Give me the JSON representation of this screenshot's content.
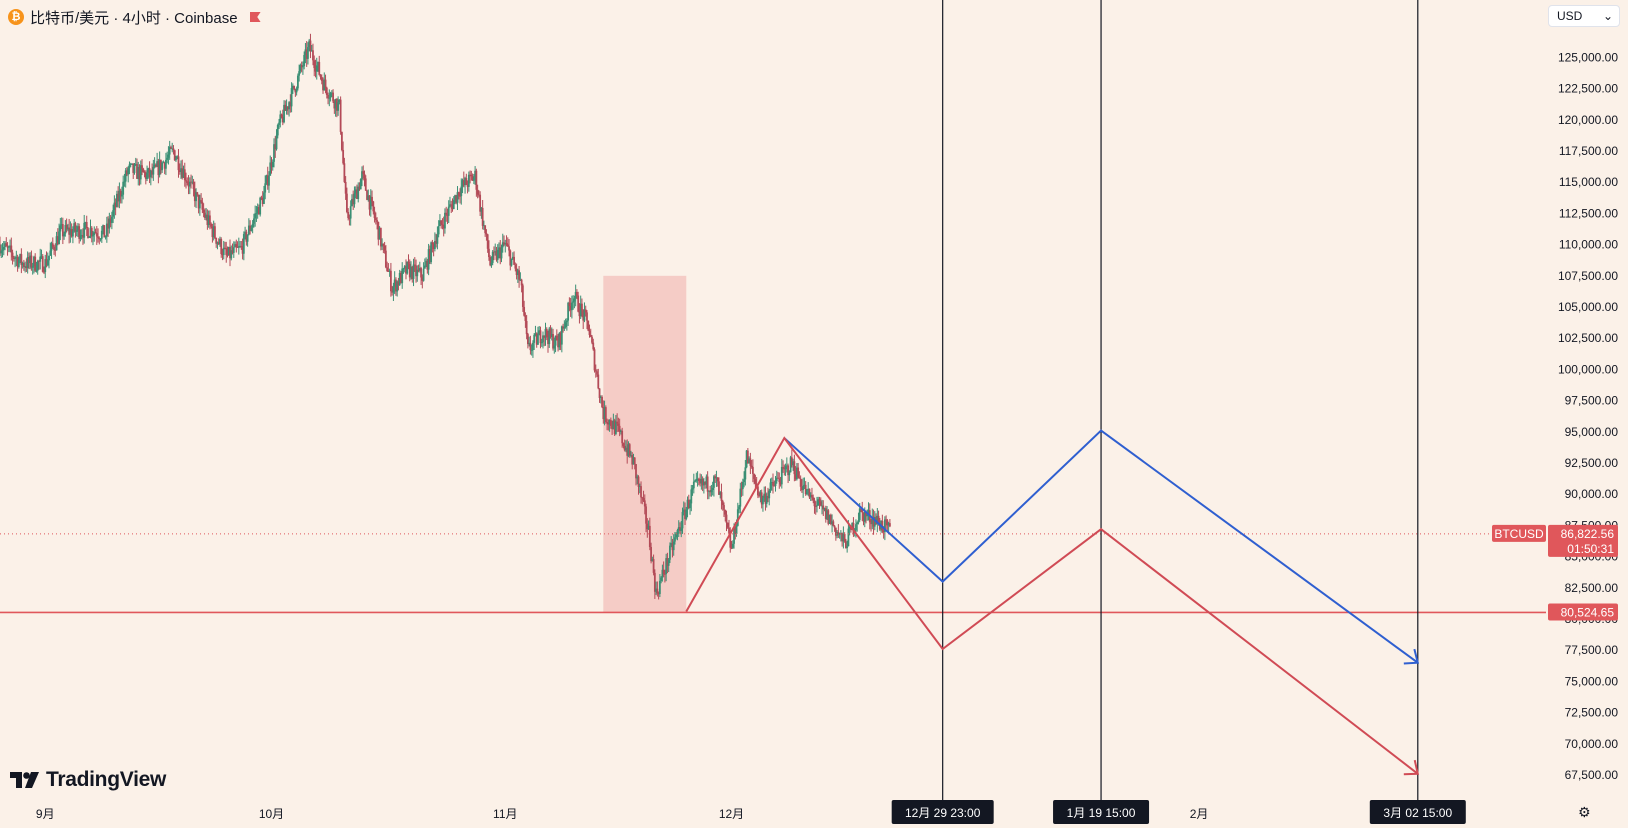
{
  "header": {
    "coin_symbol": "₿",
    "title": "比特币/美元 · 4小时 · Coinbase"
  },
  "currency_select": {
    "value": "USD",
    "chevron": "⌄"
  },
  "logo": {
    "text": "TradingView"
  },
  "settings": {
    "icon": "⚙"
  },
  "chart_data": {
    "type": "candlestick",
    "symbol": "BTCUSD",
    "interval": "4小时",
    "exchange": "Coinbase",
    "y_axis": {
      "ticks": [
        67500,
        70000,
        72500,
        75000,
        77500,
        80000,
        82500,
        85000,
        87500,
        90000,
        92500,
        95000,
        97500,
        100000,
        102500,
        105000,
        107500,
        110000,
        112500,
        115000,
        117500,
        120000,
        122500,
        125000
      ],
      "tick_labels": [
        "67,500.00",
        "70,000.00",
        "72,500.00",
        "75,000.00",
        "77,500.00",
        "80,000.00",
        "82,500.00",
        "85,000.00",
        "87,500.00",
        "90,000.00",
        "92,500.00",
        "95,000.00",
        "97,500.00",
        "100,000.00",
        "102,500.00",
        "105,000.00",
        "107,500.00",
        "110,000.00",
        "112,500.00",
        "115,000.00",
        "117,500.00",
        "120,000.00",
        "122,500.00",
        "125,000.00"
      ],
      "range": [
        65500,
        129600
      ]
    },
    "x_axis": {
      "range": [
        "2025-08-26",
        "2026-03-19"
      ],
      "month_labels": [
        {
          "date": "2025-09-01",
          "label": "9月"
        },
        {
          "date": "2025-10-01",
          "label": "10月"
        },
        {
          "date": "2025-11-01",
          "label": "11月"
        },
        {
          "date": "2025-12-01",
          "label": "12月"
        },
        {
          "date": "2026-02-01",
          "label": "2月"
        }
      ]
    },
    "price_path": [
      [
        "2025-08-26",
        110000
      ],
      [
        "2025-08-29",
        108500
      ],
      [
        "2025-09-01",
        108500
      ],
      [
        "2025-09-03",
        111000
      ],
      [
        "2025-09-07",
        111200
      ],
      [
        "2025-09-09",
        110800
      ],
      [
        "2025-09-12",
        116000
      ],
      [
        "2025-09-15",
        115500
      ],
      [
        "2025-09-18",
        117500
      ],
      [
        "2025-09-22",
        112500
      ],
      [
        "2025-09-25",
        109000
      ],
      [
        "2025-09-27",
        109700
      ],
      [
        "2025-09-30",
        114000
      ],
      [
        "2025-10-02",
        119500
      ],
      [
        "2025-10-04",
        122500
      ],
      [
        "2025-10-06",
        125800
      ],
      [
        "2025-10-08",
        122800
      ],
      [
        "2025-10-10",
        121000
      ],
      [
        "2025-10-11",
        112000
      ],
      [
        "2025-10-13",
        115500
      ],
      [
        "2025-10-15",
        111500
      ],
      [
        "2025-10-17",
        106500
      ],
      [
        "2025-10-19",
        108000
      ],
      [
        "2025-10-21",
        107500
      ],
      [
        "2025-10-23",
        111000
      ],
      [
        "2025-10-26",
        114500
      ],
      [
        "2025-10-28",
        115500
      ],
      [
        "2025-10-30",
        108500
      ],
      [
        "2025-11-01",
        110000
      ],
      [
        "2025-11-03",
        107000
      ],
      [
        "2025-11-04",
        101500
      ],
      [
        "2025-11-06",
        103000
      ],
      [
        "2025-11-08",
        102000
      ],
      [
        "2025-11-10",
        106000
      ],
      [
        "2025-11-12",
        103500
      ],
      [
        "2025-11-14",
        96500
      ],
      [
        "2025-11-16",
        95000
      ],
      [
        "2025-11-18",
        92500
      ],
      [
        "2025-11-20",
        87000
      ],
      [
        "2025-11-21",
        82000
      ],
      [
        "2025-11-23",
        85500
      ],
      [
        "2025-11-26",
        90500
      ],
      [
        "2025-11-29",
        91000
      ],
      [
        "2025-12-01",
        85500
      ],
      [
        "2025-12-03",
        93000
      ],
      [
        "2025-12-05",
        89500
      ],
      [
        "2025-12-09",
        92500
      ],
      [
        "2025-12-11",
        90000
      ],
      [
        "2025-12-14",
        88000
      ],
      [
        "2025-12-16",
        86000
      ],
      [
        "2025-12-18",
        88500
      ],
      [
        "2025-12-20",
        88000
      ],
      [
        "2025-12-22",
        87000
      ]
    ],
    "bearish_zone": {
      "start": "2025-11-14",
      "end": "2025-11-25",
      "low": 80525,
      "high": 107500
    },
    "zigzag_lines": [
      {
        "color": "#2f5fd0",
        "points": [
          [
            "2025-12-08",
            94500
          ],
          [
            "2025-12-29",
            83000
          ],
          [
            "2026-01-19",
            95100
          ],
          [
            "2026-03-02",
            76500
          ]
        ]
      },
      {
        "color": "#d04b55",
        "points": [
          [
            "2025-11-25",
            80600
          ],
          [
            "2025-12-08",
            94500
          ],
          [
            "2025-12-29",
            77600
          ],
          [
            "2026-01-19",
            87200
          ],
          [
            "2026-03-02",
            67600
          ]
        ]
      }
    ],
    "vertical_markers": [
      {
        "date": "2025-12-29",
        "label": "12月 29   23:00"
      },
      {
        "date": "2026-01-19",
        "label": "1月 19   15:00"
      },
      {
        "date": "2026-03-02",
        "label": "3月 02   15:00"
      }
    ],
    "support_line": {
      "value": 80524.65,
      "label": "80,524.65",
      "color": "#e0575b"
    },
    "last_price": {
      "ticker": "BTCUSD",
      "value": 86822.56,
      "label": "86,822.56",
      "countdown": "01:50:31",
      "color": "#e0575b"
    },
    "colors": {
      "up": "#3a8f74",
      "down": "#b34a57",
      "zone": "#f3c6c0"
    }
  }
}
